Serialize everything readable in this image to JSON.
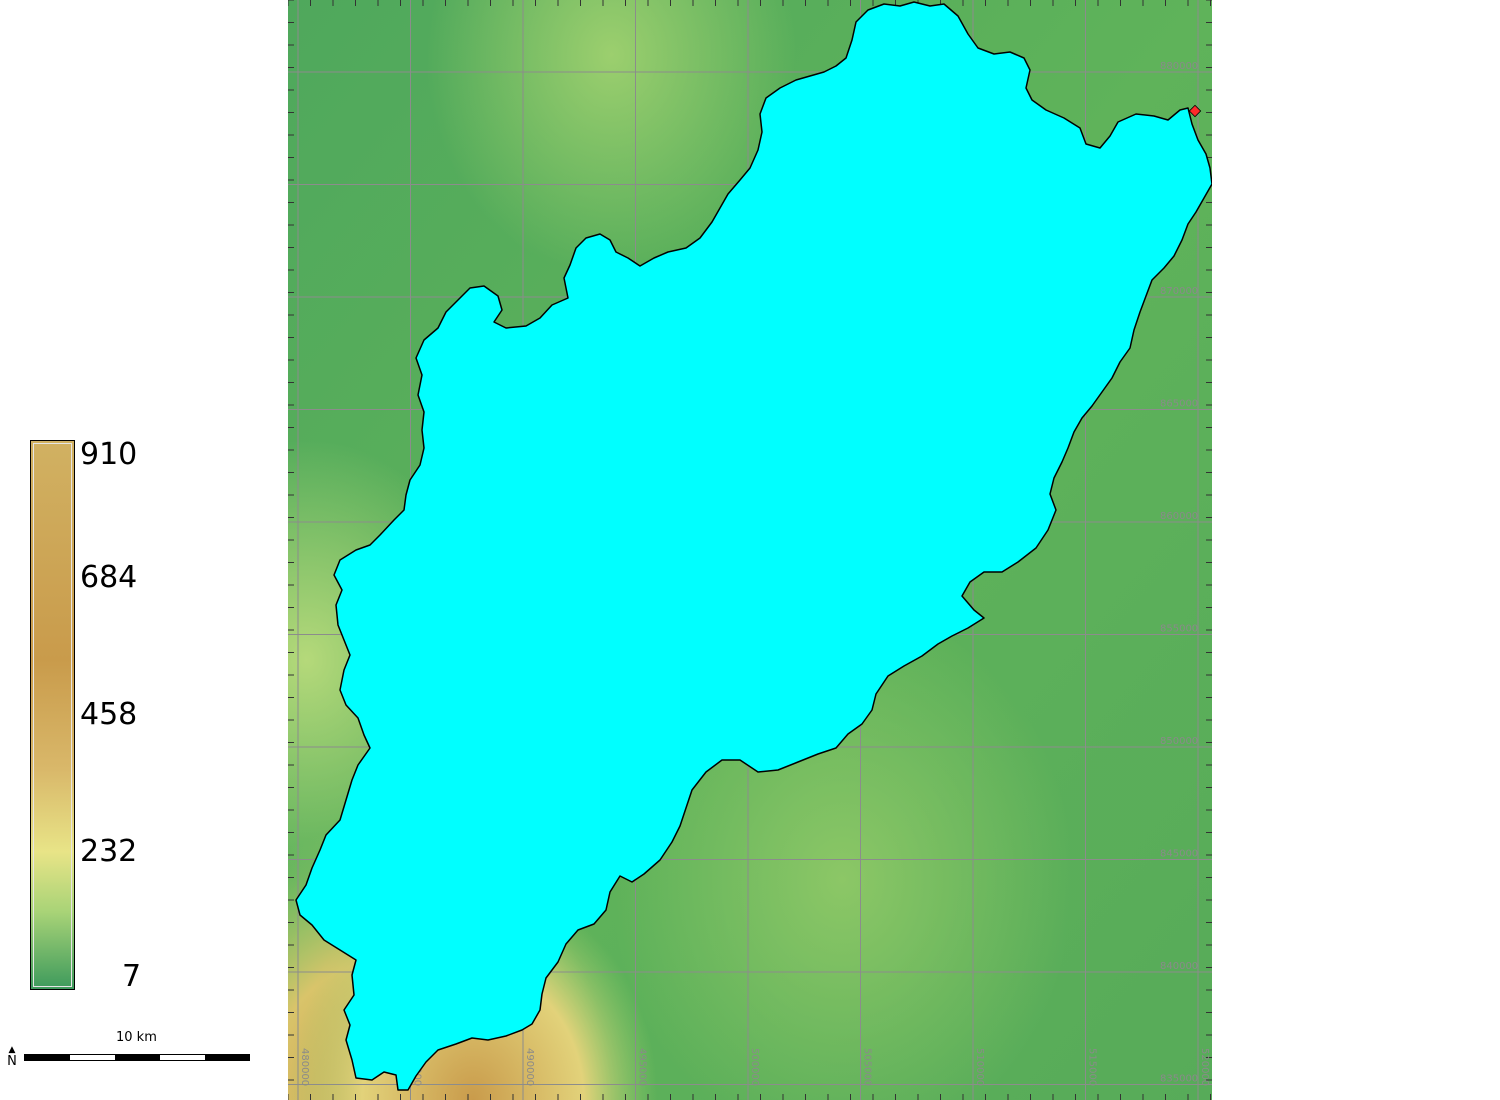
{
  "legend": {
    "labels": [
      "910",
      "684",
      "458",
      "232",
      "7"
    ]
  },
  "grid": {
    "eastings": [
      "480000",
      "485000",
      "490000",
      "495000",
      "500000",
      "505000",
      "510000",
      "515000",
      "520000"
    ],
    "northings": [
      "880000",
      "875000",
      "870000",
      "865000",
      "860000",
      "855000",
      "850000",
      "845000",
      "840000",
      "835000"
    ]
  },
  "scale": {
    "label": "10 km",
    "north": "N"
  },
  "colors": {
    "basin_fill": "#00ffff",
    "basin_outline": "#000000",
    "outlet_marker": "#ff2a2a",
    "terrain_low": "#3d9a5c",
    "terrain_mid": "#6fbf5a",
    "terrain_high": "#c99b4b",
    "grid": "#8c8c8c"
  },
  "icons": {
    "outlet": "red-diamond-icon",
    "north": "north-arrow-icon"
  }
}
